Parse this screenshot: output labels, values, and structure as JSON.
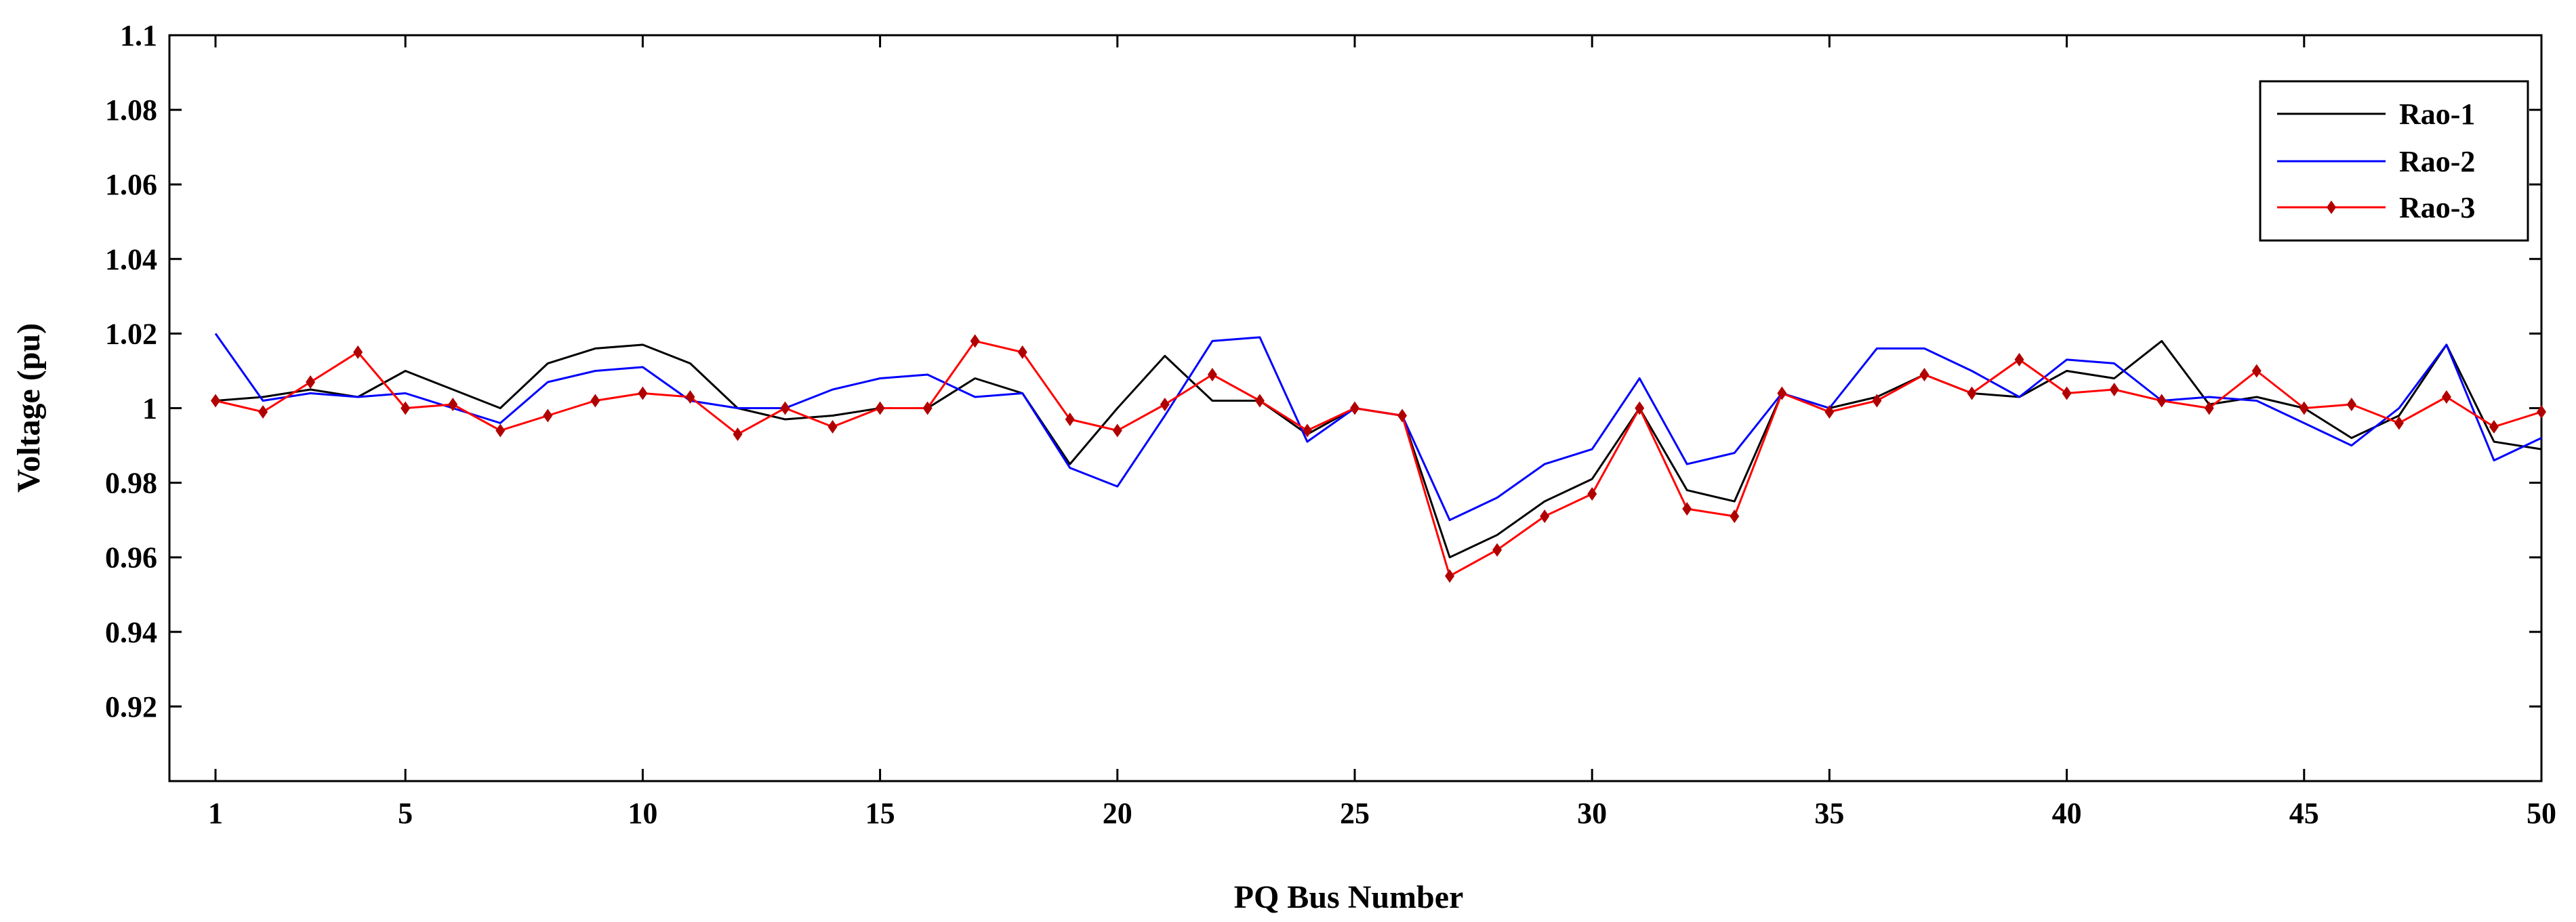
{
  "chart_data": {
    "type": "line",
    "xlabel": "PQ Bus Number",
    "ylabel": "Voltage (pu)",
    "xlim": [
      1,
      50
    ],
    "ylim": [
      0.9,
      1.1
    ],
    "x_ticks": [
      1,
      5,
      10,
      15,
      20,
      25,
      30,
      35,
      40,
      45,
      50
    ],
    "y_ticks": [
      "",
      "0.92",
      "0.94",
      "0.96",
      "0.98",
      "1",
      "1.02",
      "1.04",
      "1.06",
      "1.08",
      "1.1"
    ],
    "y_tick_values": [
      0.9,
      0.92,
      0.94,
      0.96,
      0.98,
      1.0,
      1.02,
      1.04,
      1.06,
      1.08,
      1.1
    ],
    "grid": false,
    "legend_position": "top-right",
    "x": [
      1,
      2,
      3,
      4,
      5,
      6,
      7,
      8,
      9,
      10,
      11,
      12,
      13,
      14,
      15,
      16,
      17,
      18,
      19,
      20,
      21,
      22,
      23,
      24,
      25,
      26,
      27,
      28,
      29,
      30,
      31,
      32,
      33,
      34,
      35,
      36,
      37,
      38,
      39,
      40,
      41,
      42,
      43,
      44,
      45,
      46,
      47,
      48,
      49,
      50
    ],
    "series": [
      {
        "name": "Rao-1",
        "color": "#000000",
        "marker": "none",
        "values": [
          1.002,
          1.003,
          1.005,
          1.003,
          1.01,
          1.005,
          1.0,
          1.012,
          1.016,
          1.017,
          1.012,
          1.0,
          0.997,
          0.998,
          1.0,
          1.0,
          1.008,
          1.004,
          0.985,
          1.0,
          1.014,
          1.002,
          1.002,
          0.993,
          1.0,
          0.998,
          0.96,
          0.966,
          0.975,
          0.981,
          1.0,
          0.978,
          0.975,
          1.004,
          1.0,
          1.003,
          1.009,
          1.004,
          1.003,
          1.01,
          1.008,
          1.018,
          1.001,
          1.003,
          1.0,
          0.992,
          0.998,
          1.017,
          0.991,
          0.989
        ]
      },
      {
        "name": "Rao-2",
        "color": "#0000ff",
        "marker": "none",
        "values": [
          1.02,
          1.002,
          1.004,
          1.003,
          1.004,
          1.0,
          0.996,
          1.007,
          1.01,
          1.011,
          1.002,
          1.0,
          1.0,
          1.005,
          1.008,
          1.009,
          1.003,
          1.004,
          0.984,
          0.979,
          0.998,
          1.018,
          1.019,
          0.991,
          1.0,
          0.998,
          0.97,
          0.976,
          0.985,
          0.989,
          1.008,
          0.985,
          0.988,
          1.004,
          1.0,
          1.016,
          1.016,
          1.01,
          1.003,
          1.013,
          1.012,
          1.002,
          1.003,
          1.002,
          0.996,
          0.99,
          1.0,
          1.017,
          0.986,
          0.992
        ]
      },
      {
        "name": "Rao-3",
        "color": "#ff0000",
        "marker_color": "#b00000",
        "marker": "diamond",
        "values": [
          1.002,
          0.999,
          1.007,
          1.015,
          1.0,
          1.001,
          0.994,
          0.998,
          1.002,
          1.004,
          1.003,
          0.993,
          1.0,
          0.995,
          1.0,
          1.0,
          1.018,
          1.015,
          0.997,
          0.994,
          1.001,
          1.009,
          1.002,
          0.994,
          1.0,
          0.998,
          0.955,
          0.962,
          0.971,
          0.977,
          1.0,
          0.973,
          0.971,
          1.004,
          0.999,
          1.002,
          1.009,
          1.004,
          1.013,
          1.004,
          1.005,
          1.002,
          1.0,
          1.01,
          1.0,
          1.001,
          0.996,
          1.003,
          0.995,
          0.999
        ]
      }
    ]
  }
}
